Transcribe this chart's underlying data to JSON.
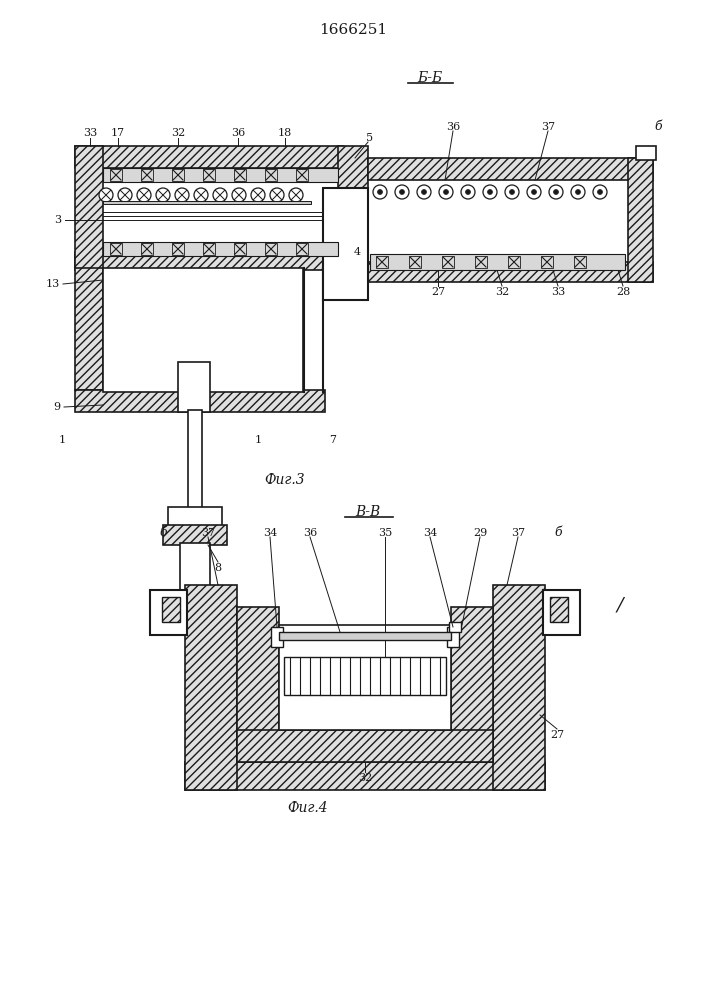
{
  "title": "1666251",
  "fig3_label": "Фиг.3",
  "fig4_label": "Фиг.4",
  "section_bb": "Б-Б",
  "section_vv": "В-В",
  "line_color": "#1a1a1a",
  "hatch_color": "#1a1a1a"
}
